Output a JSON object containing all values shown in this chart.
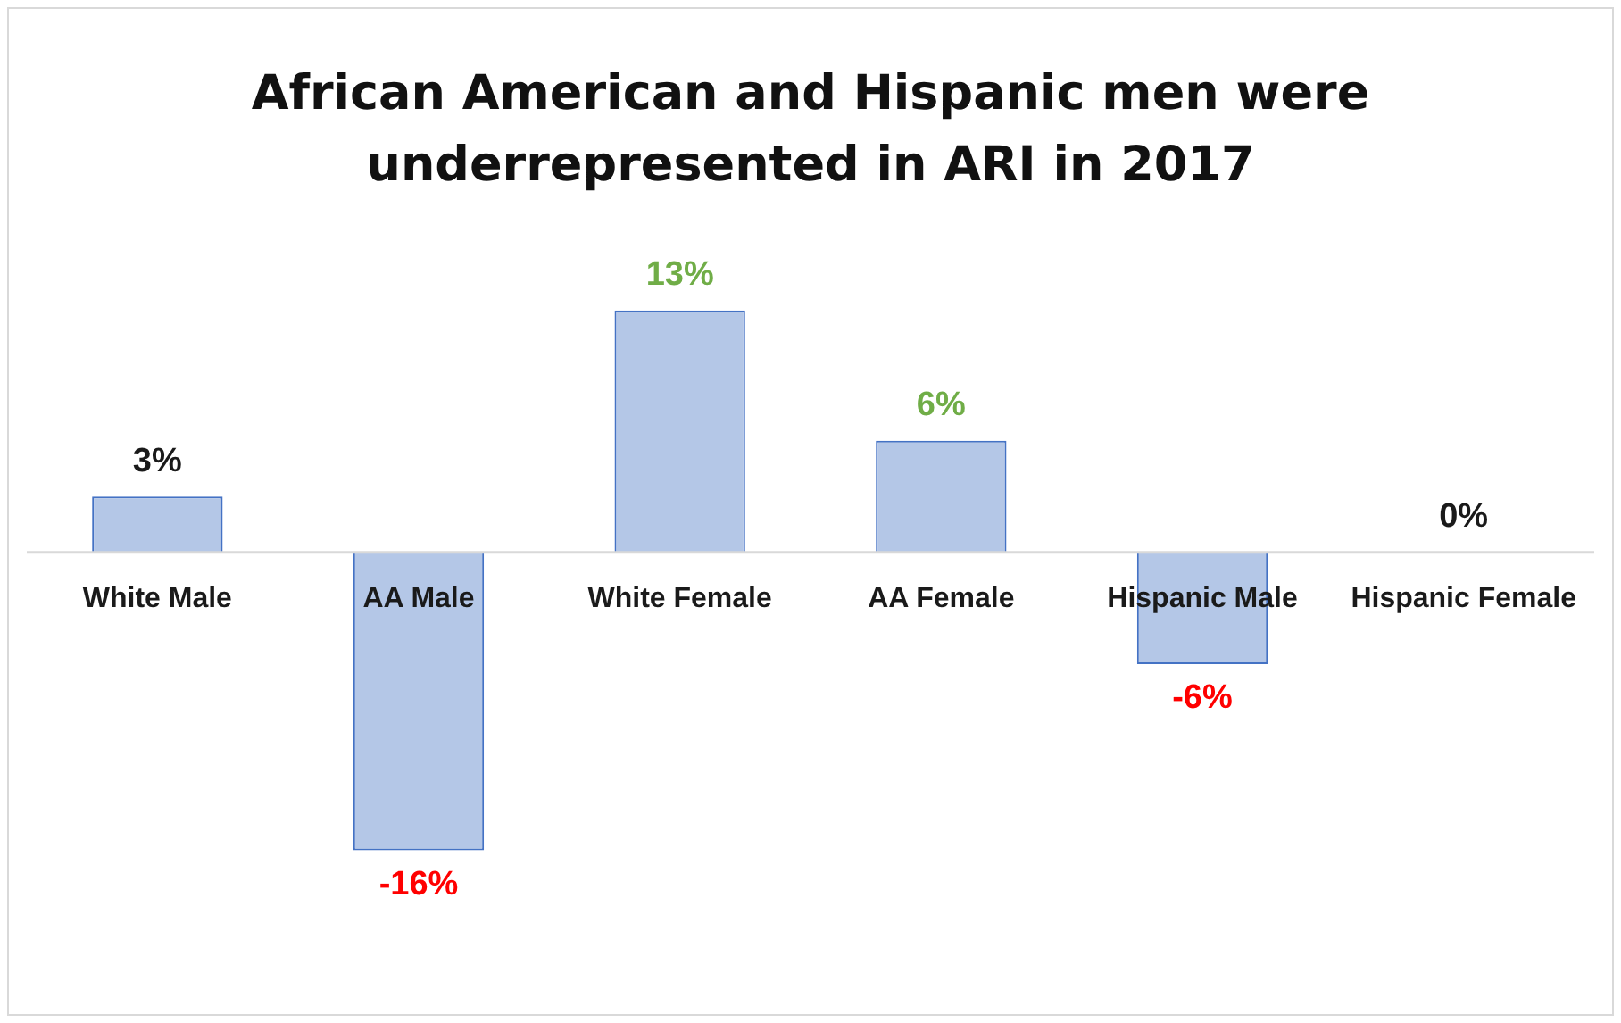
{
  "chart_data": {
    "type": "bar",
    "title": "African American and Hispanic men were underrepresented in ARI in 2017",
    "categories": [
      "White Male",
      "AA Male",
      "White Female",
      "AA Female",
      "Hispanic Male",
      "Hispanic Female"
    ],
    "values": [
      3,
      -16,
      13,
      6,
      -6,
      0
    ],
    "value_labels": [
      "3%",
      "-16%",
      "13%",
      "6%",
      "-6%",
      "0%"
    ],
    "color": "#b4c7e7",
    "legend": false
  }
}
